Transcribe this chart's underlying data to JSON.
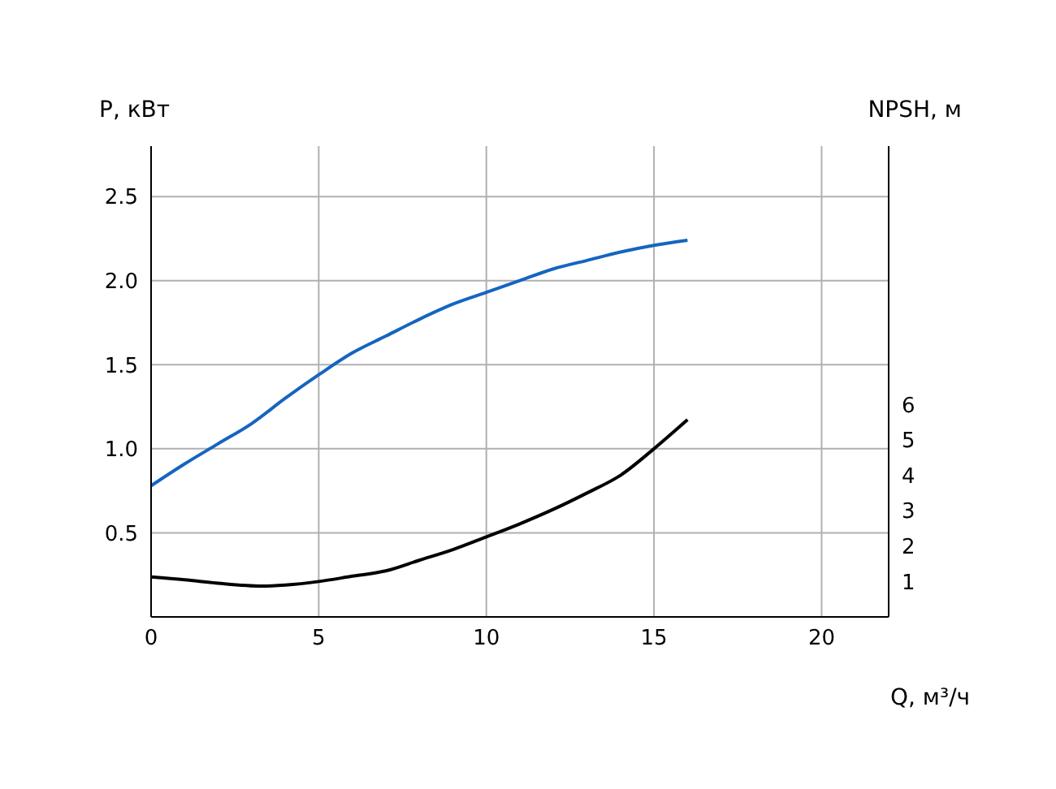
{
  "chart_data": {
    "type": "line",
    "xlabel": "Q, м³/ч",
    "ylabel": "P, кВт",
    "y2label": "NPSH, м",
    "xlim": [
      0,
      22
    ],
    "xticks": [
      0,
      5,
      10,
      15,
      20
    ],
    "ylim": [
      0,
      2.8
    ],
    "yticks": [
      0.5,
      {
        "value": 1,
        "label": "1.0"
      },
      1.5,
      {
        "value": 2,
        "label": "2.0"
      },
      2.5
    ],
    "y2lim": [
      0,
      13.3
    ],
    "y2ticks": [
      1,
      2,
      3,
      4,
      5,
      6
    ],
    "grid": true,
    "marker": "none",
    "line_style": "solid",
    "series": [
      {
        "color": "#1565c0",
        "x": [
          0,
          1,
          2,
          3,
          4,
          5,
          6,
          7,
          8,
          9,
          10,
          11,
          12,
          13,
          14,
          15,
          16
        ],
        "values": [
          0.78,
          0.91,
          1.03,
          1.15,
          1.3,
          1.44,
          1.57,
          1.67,
          1.77,
          1.86,
          1.93,
          2.0,
          2.07,
          2.12,
          2.17,
          2.21,
          2.24
        ]
      },
      {
        "color": "#000000",
        "axis": "y2",
        "x": [
          0,
          1,
          2,
          3.3,
          4,
          5,
          6,
          7,
          8,
          9,
          10,
          11,
          12,
          13,
          14,
          15,
          16
        ],
        "values": [
          1.13,
          1.05,
          0.95,
          0.87,
          0.9,
          1.0,
          1.15,
          1.3,
          1.6,
          1.9,
          2.26,
          2.63,
          3.04,
          3.5,
          4.0,
          4.75,
          5.57
        ]
      }
    ]
  }
}
